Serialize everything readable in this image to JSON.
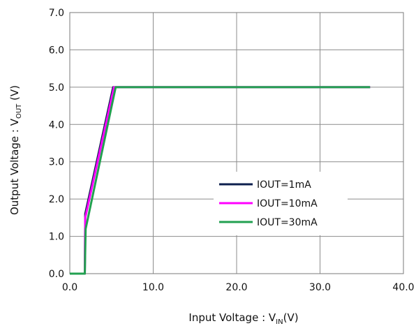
{
  "chart_data": {
    "type": "line",
    "xlabel": {
      "main": "Input Voltage : V",
      "sub": "IN",
      "suffix": "(V)"
    },
    "ylabel": {
      "main": "Output Voltage : V",
      "sub": "OUT",
      "suffix": " (V)"
    },
    "xlim": [
      0,
      40
    ],
    "ylim": [
      0,
      7
    ],
    "x_ticks": [
      "0.0",
      "10.0",
      "20.0",
      "30.0",
      "40.0"
    ],
    "y_ticks": [
      "0.0",
      "1.0",
      "2.0",
      "3.0",
      "4.0",
      "5.0",
      "6.0",
      "7.0"
    ],
    "grid": true,
    "legend_position": "center-right",
    "series": [
      {
        "name": "IOUT=1mA",
        "color": "#0d1f4e",
        "points": [
          [
            0,
            0
          ],
          [
            1.8,
            0
          ],
          [
            1.85,
            1.6
          ],
          [
            5.2,
            5.0
          ],
          [
            36,
            5.0
          ]
        ]
      },
      {
        "name": "IOUT=10mA",
        "color": "#ff00ff",
        "points": [
          [
            0,
            0
          ],
          [
            1.8,
            0
          ],
          [
            1.85,
            1.5
          ],
          [
            5.3,
            5.0
          ],
          [
            36,
            5.0
          ]
        ]
      },
      {
        "name": "IOUT=30mA",
        "color": "#22a050",
        "points": [
          [
            0,
            0
          ],
          [
            1.8,
            0
          ],
          [
            1.9,
            1.2
          ],
          [
            5.5,
            5.0
          ],
          [
            36,
            5.0
          ]
        ]
      }
    ]
  }
}
